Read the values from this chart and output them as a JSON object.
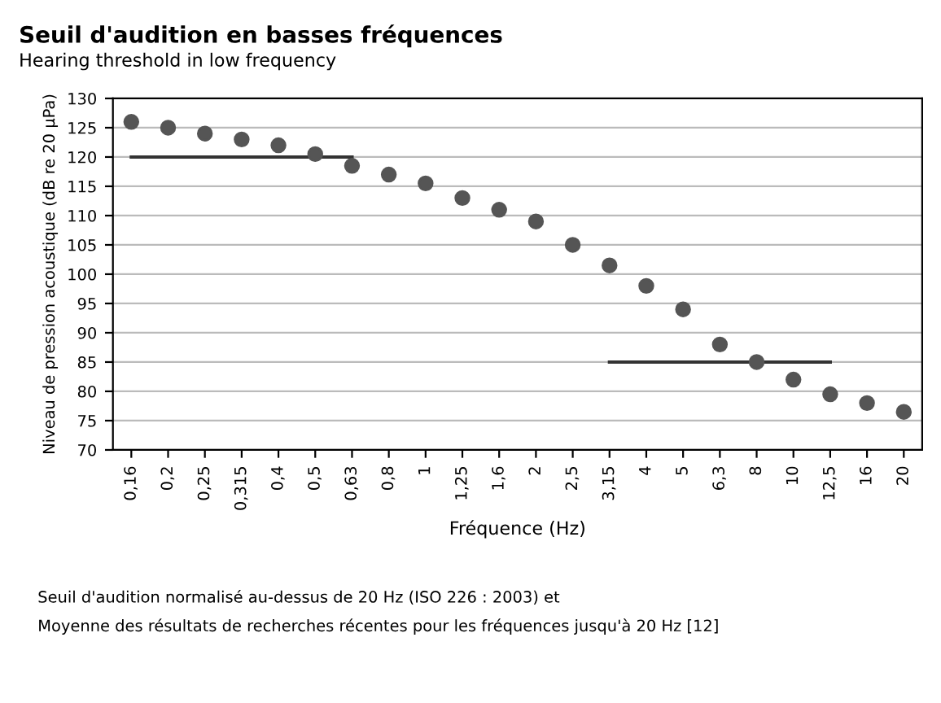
{
  "chart_data": {
    "type": "scatter",
    "title": "Seuil d'audition en basses fréquences",
    "subtitle": "Hearing threshold in low frequency",
    "xlabel": "Fréquence (Hz)",
    "ylabel": "Niveau de pression acoustique (dB re 20 µPa)",
    "categories": [
      "0,16",
      "0,2",
      "0,25",
      "0,315",
      "0,4",
      "0,5",
      "0,63",
      "0,8",
      "1",
      "1,25",
      "1,6",
      "2",
      "2,5",
      "3,15",
      "4",
      "5",
      "6,3",
      "8",
      "10",
      "12,5",
      "16",
      "20"
    ],
    "series": [
      {
        "color": "#555555",
        "marker": "circle",
        "values": [
          126,
          125,
          124,
          123,
          122,
          120.5,
          118.5,
          117,
          115.5,
          113,
          111,
          109,
          105,
          101.5,
          98,
          94,
          88,
          85,
          82,
          79.5,
          78,
          76.5
        ]
      },
      {
        "type": "line",
        "color": "#333333",
        "x": [
          "0,16",
          "0,63"
        ],
        "values": [
          120,
          120
        ]
      },
      {
        "type": "line",
        "color": "#333333",
        "x": [
          "3,15",
          "12,5"
        ],
        "values": [
          85,
          85
        ]
      }
    ],
    "ylim": [
      70,
      130
    ],
    "yticks": [
      70,
      75,
      80,
      85,
      90,
      95,
      100,
      105,
      110,
      115,
      120,
      125,
      130
    ],
    "grid": "y",
    "annotations": [
      "Seuil d'audition normalisé au-dessus de 20 Hz (ISO 226 : 2003) et",
      "Moyenne des résultats de recherches récentes pour les fréquences jusqu'à 20 Hz [12]"
    ]
  }
}
